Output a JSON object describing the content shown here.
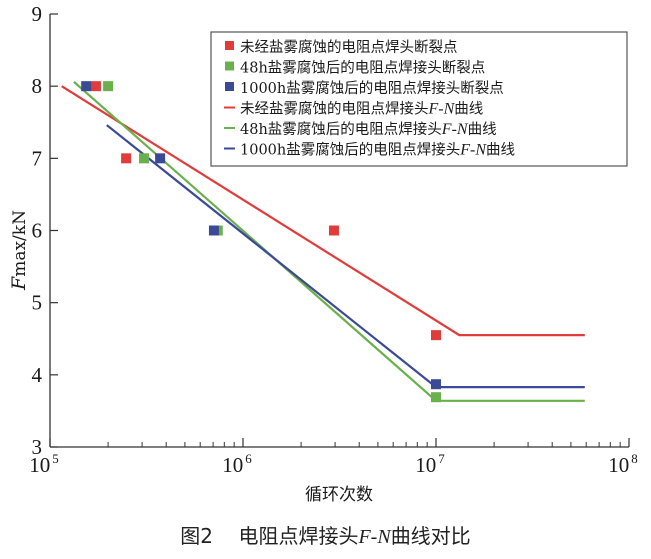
{
  "chart_data": {
    "type": "line",
    "title": "",
    "caption": {
      "prefix": "图2",
      "text_before": "电阻点焊接头",
      "italic": "F-N",
      "text_after": "曲线对比"
    },
    "xlabel": "循环次数",
    "ylabel_italic": "F",
    "ylabel_rest": "max/kN",
    "xscale": "log",
    "xlim": [
      100000,
      100000000
    ],
    "ylim": [
      3,
      9
    ],
    "grid": false,
    "legend_position": "upper right (inside)",
    "x_ticks": [
      {
        "base": "10",
        "exp": "5",
        "value": 100000
      },
      {
        "base": "10",
        "exp": "6",
        "value": 1000000
      },
      {
        "base": "10",
        "exp": "7",
        "value": 10000000
      },
      {
        "base": "10",
        "exp": "8",
        "value": 100000000
      }
    ],
    "y_ticks": [
      "3",
      "4",
      "5",
      "6",
      "7",
      "8",
      "9"
    ],
    "series": [
      {
        "name": "未经盐雾腐蚀的电阻点焊头断裂点",
        "kind": "scatter",
        "color": "#e03c3c",
        "points": [
          [
            173000,
            8.0
          ],
          [
            248000,
            7.0
          ],
          [
            2960000,
            6.0
          ],
          [
            10000000,
            4.55
          ]
        ]
      },
      {
        "name": "48h盐雾腐蚀后的电阻点焊接头断裂点",
        "kind": "scatter",
        "color": "#6ab04c",
        "points": [
          [
            200000,
            8.0
          ],
          [
            307000,
            7.0
          ],
          [
            740000,
            6.0
          ],
          [
            10000000,
            3.69
          ]
        ]
      },
      {
        "name": "1000h盐雾腐蚀后的电阻点焊接头断裂点",
        "kind": "scatter",
        "color": "#3b4a94",
        "points": [
          [
            154000,
            8.0
          ],
          [
            372000,
            7.0
          ],
          [
            707000,
            6.0
          ],
          [
            10000000,
            3.87
          ]
        ]
      },
      {
        "name": "未经盐雾腐蚀的电阻点焊接头F-N曲线",
        "kind": "line",
        "color": "#e03c3c",
        "points": [
          [
            115000,
            8.0
          ],
          [
            13200000,
            4.55
          ],
          [
            59000000,
            4.55
          ]
        ]
      },
      {
        "name": "48h盐雾腐蚀后的电阻点焊接头F-N曲线",
        "kind": "line",
        "color": "#6ab04c",
        "points": [
          [
            133000,
            8.06
          ],
          [
            10000000,
            3.64
          ],
          [
            59000000,
            3.64
          ]
        ]
      },
      {
        "name": "1000h盐雾腐蚀后的电阻点焊接头F-N曲线",
        "kind": "line",
        "color": "#3b4a94",
        "points": [
          [
            197000,
            7.46
          ],
          [
            10000000,
            3.83
          ],
          [
            59000000,
            3.83
          ]
        ]
      }
    ]
  },
  "legend": {
    "items": [
      {
        "marker": "square",
        "color": "#e03c3c",
        "label": "未经盐雾腐蚀的电阻点焊头断裂点"
      },
      {
        "marker": "square",
        "color": "#6ab04c",
        "label": "48h盐雾腐蚀后的电阻点焊接头断裂点"
      },
      {
        "marker": "square",
        "color": "#3b4a94",
        "label": "1000h盐雾腐蚀后的电阻点焊接头断裂点"
      },
      {
        "marker": "line",
        "color": "#e03c3c",
        "label_pre": "未经盐雾腐蚀的电阻点焊接头",
        "label_it": "F-N",
        "label_post": "曲线"
      },
      {
        "marker": "line",
        "color": "#6ab04c",
        "label_pre": "48h盐雾腐蚀后的电阻点焊接头",
        "label_it": "F-N",
        "label_post": "曲线"
      },
      {
        "marker": "line",
        "color": "#3b4a94",
        "label_pre": "1000h盐雾腐蚀后的电阻点焊接头",
        "label_it": "F-N",
        "label_post": "曲线"
      }
    ]
  }
}
